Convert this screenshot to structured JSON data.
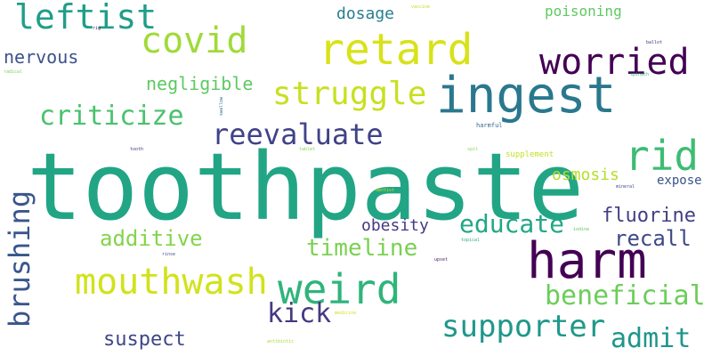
{
  "words": [
    {
      "text": "toothpaste",
      "color": "#21a585",
      "rank": 1
    },
    {
      "text": "harm",
      "color": "#440154",
      "rank": 2
    },
    {
      "text": "ingest",
      "color": "#2a788e",
      "rank": 3
    },
    {
      "text": "retard",
      "color": "#d8e219",
      "rank": 4
    },
    {
      "text": "weird",
      "color": "#2fb47c",
      "rank": 5
    },
    {
      "text": "rid",
      "color": "#3dbc74",
      "rank": 6
    },
    {
      "text": "covid",
      "color": "#a0da39",
      "rank": 7
    },
    {
      "text": "mouthwash",
      "color": "#d2e21b",
      "rank": 8
    },
    {
      "text": "worried",
      "color": "#440154",
      "rank": 9
    },
    {
      "text": "leftist",
      "color": "#1f9e89",
      "rank": 10
    },
    {
      "text": "struggle",
      "color": "#c8e020",
      "rank": 11
    },
    {
      "text": "supporter",
      "color": "#1f988b",
      "rank": 12
    },
    {
      "text": "reevaluate",
      "color": "#404387",
      "rank": 13
    },
    {
      "text": "brushing",
      "color": "#39568c",
      "rank": 14
    },
    {
      "text": "criticize",
      "color": "#4ac16d",
      "rank": 15
    },
    {
      "text": "kick",
      "color": "#443a83",
      "rank": 16
    },
    {
      "text": "beneficial",
      "color": "#6ccd5a",
      "rank": 17
    },
    {
      "text": "admit",
      "color": "#1f968b",
      "rank": 18
    },
    {
      "text": "educate",
      "color": "#22a785",
      "rank": 19
    },
    {
      "text": "timeline",
      "color": "#7ad151",
      "rank": 20
    },
    {
      "text": "additive",
      "color": "#84d44b",
      "rank": 21
    },
    {
      "text": "recall",
      "color": "#3e4a89",
      "rank": 22
    },
    {
      "text": "fluorine",
      "color": "#433e85",
      "rank": 23
    },
    {
      "text": "suspect",
      "color": "#404688",
      "rank": 24
    },
    {
      "text": "negligible",
      "color": "#5ec962",
      "rank": 25
    },
    {
      "text": "nervous",
      "color": "#3b528b",
      "rank": 26
    },
    {
      "text": "osmosis",
      "color": "#b5de2b",
      "rank": 27
    },
    {
      "text": "obesity",
      "color": "#443983",
      "rank": 28
    },
    {
      "text": "dosage",
      "color": "#277f8e",
      "rank": 29
    },
    {
      "text": "poisoning",
      "color": "#5ec962",
      "rank": 30
    },
    {
      "text": "expose",
      "color": "#3b528b",
      "rank": 31
    },
    {
      "text": "supplement",
      "color": "#c2df23",
      "rank": 32
    },
    {
      "text": "harmful",
      "color": "#31688e",
      "rank": 33
    },
    {
      "text": "spit",
      "color": "#8ed645",
      "rank": 34
    },
    {
      "text": "tooth",
      "color": "#46327e",
      "rank": 35
    },
    {
      "text": "tablet",
      "color": "#86d549",
      "rank": 36
    },
    {
      "text": "vaccine",
      "color": "#b8de29",
      "rank": 37
    },
    {
      "text": "ballot",
      "color": "#472d7b",
      "rank": 38
    },
    {
      "text": "spinach",
      "color": "#35b779",
      "rank": 39
    },
    {
      "text": "radical",
      "color": "#7ad151",
      "rank": 40
    },
    {
      "text": "rig",
      "color": "#481f70",
      "rank": 41
    },
    {
      "text": "swallow",
      "color": "#2c728e",
      "rank": 42
    },
    {
      "text": "dentist",
      "color": "#c8e020",
      "rank": 43
    },
    {
      "text": "mineral",
      "color": "#3e4989",
      "rank": 44
    },
    {
      "text": "iodine",
      "color": "#5ec962",
      "rank": 45
    },
    {
      "text": "topical",
      "color": "#26ad81",
      "rank": 46
    },
    {
      "text": "upset",
      "color": "#482173",
      "rank": 47
    },
    {
      "text": "rinse",
      "color": "#3b528b",
      "rank": 48
    },
    {
      "text": "antibiotic",
      "color": "#a5db36",
      "rank": 49
    },
    {
      "text": "medicine",
      "color": "#d2e21b",
      "rank": 50
    }
  ]
}
